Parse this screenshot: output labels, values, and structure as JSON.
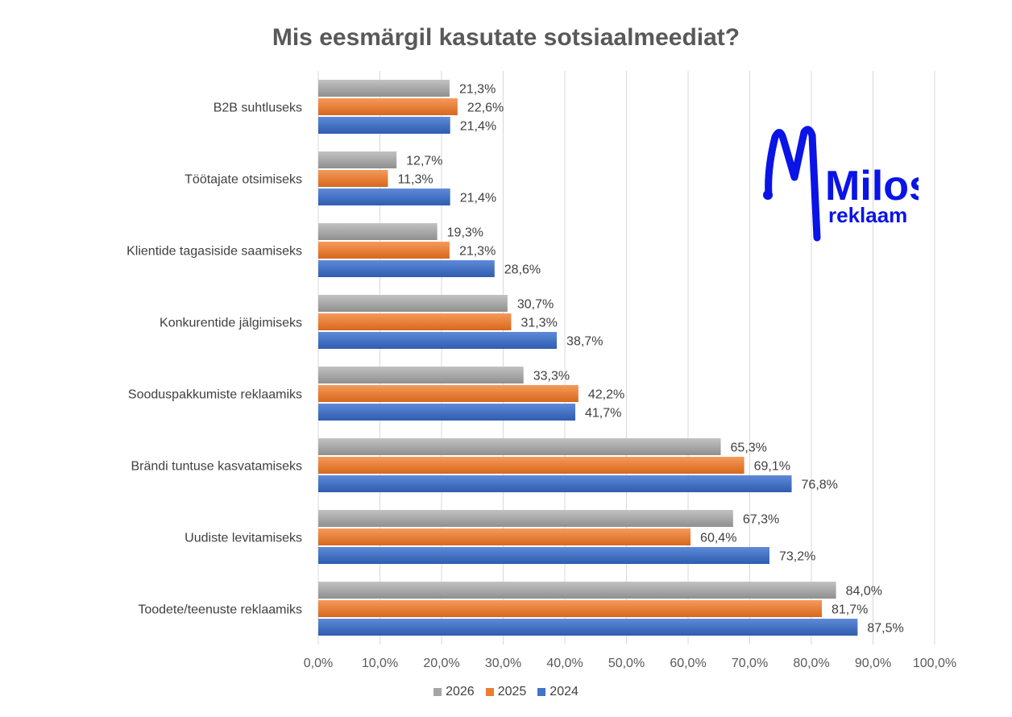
{
  "chart_data": {
    "type": "bar",
    "orientation": "horizontal",
    "title": "Mis eesmärgil kasutate sotsiaalmeediat?",
    "categories": [
      "B2B suhtluseks",
      "Töötajate otsimiseks",
      "Klientide tagasiside saamiseks",
      "Konkurentide jälgimiseks",
      "Sooduspakkumiste reklaamiks",
      "Brändi tuntuse kasvatamiseks",
      "Uudiste levitamiseks",
      "Toodete/teenuste reklaamiks"
    ],
    "series": [
      {
        "name": "2026",
        "color": "#a5a5a5",
        "values": [
          21.3,
          12.7,
          19.3,
          30.7,
          33.3,
          65.3,
          67.3,
          84.0
        ]
      },
      {
        "name": "2025",
        "color": "#ed7d31",
        "values": [
          22.6,
          11.3,
          21.3,
          31.3,
          42.2,
          69.1,
          60.4,
          81.7
        ]
      },
      {
        "name": "2024",
        "color": "#4472c4",
        "values": [
          21.4,
          21.4,
          28.6,
          38.7,
          41.7,
          76.8,
          73.2,
          87.5
        ]
      }
    ],
    "xlim": [
      0,
      100
    ],
    "xticks": [
      "0,0%",
      "10,0%",
      "20,0%",
      "30,0%",
      "40,0%",
      "50,0%",
      "60,0%",
      "70,0%",
      "80,0%",
      "90,0%",
      "100,0%"
    ],
    "grid": true,
    "legend_position": "bottom"
  },
  "logo": {
    "line1": "Milos",
    "line2": "reklaam",
    "color": "#0a14e6"
  }
}
